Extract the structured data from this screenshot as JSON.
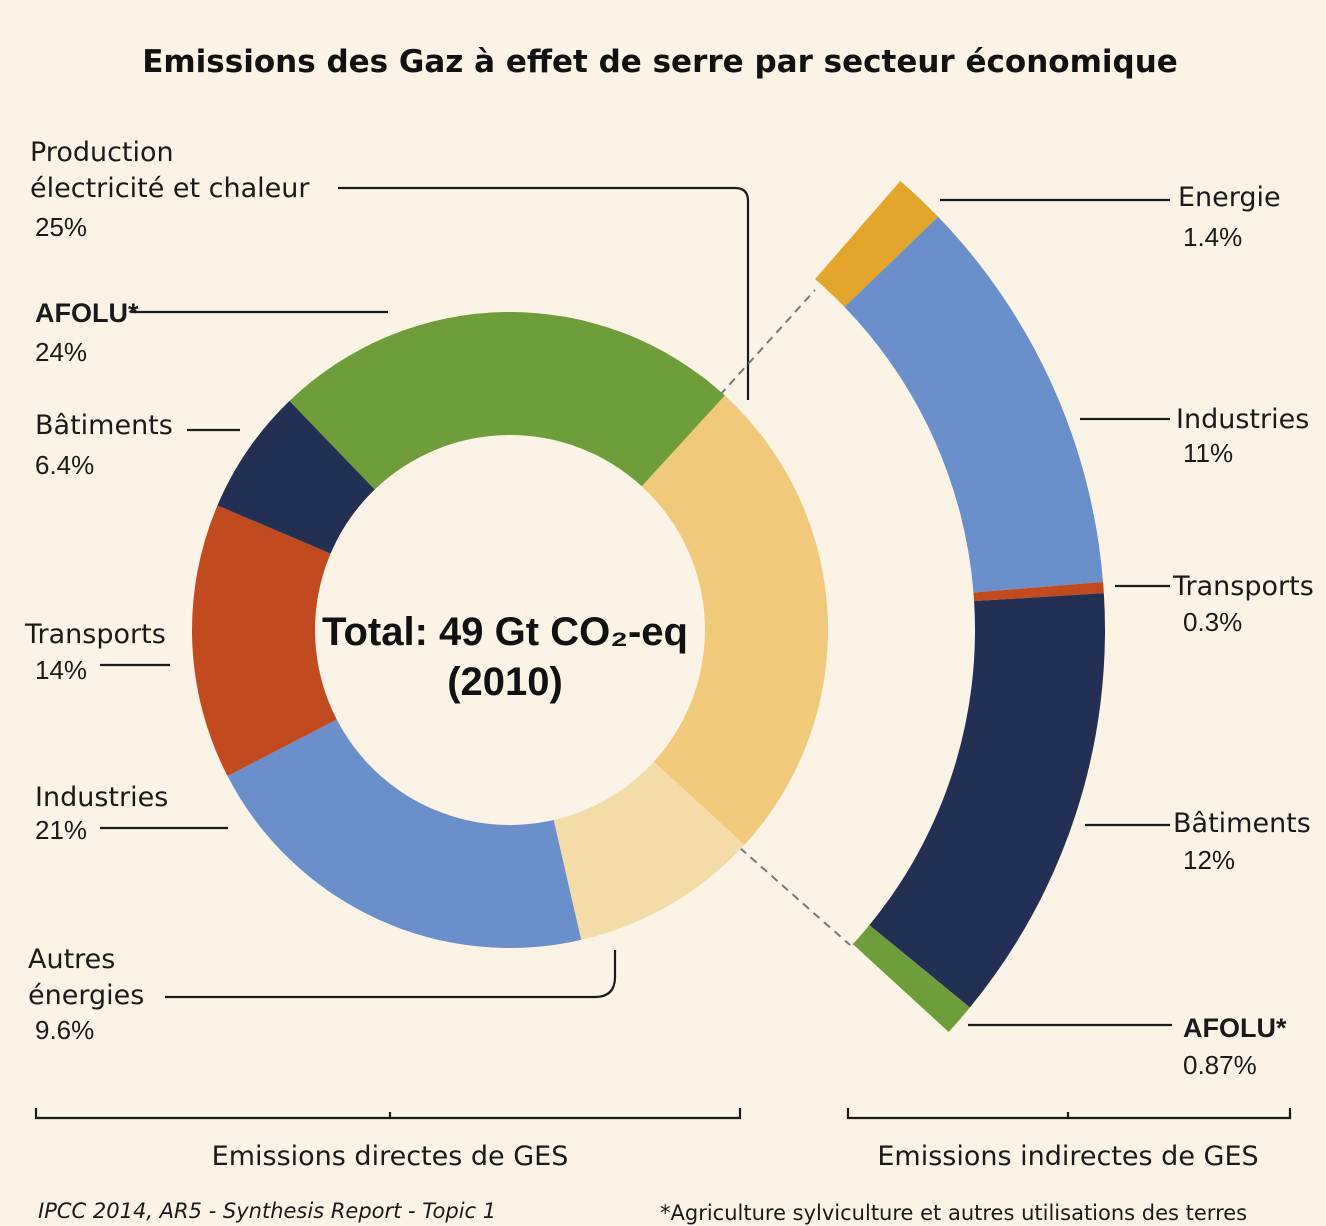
{
  "title": "Emissions des Gaz à effet de serre par secteur économique",
  "chart_data": [
    {
      "type": "donut",
      "center_label": [
        "Total: 49 Gt CO₂-eq",
        "(2010)"
      ],
      "categories": [
        "Production\nélectricité et chaleur",
        "Autres\nénergies",
        "Industries",
        "Transports",
        "Bâtiments",
        "AFOLU*"
      ],
      "values": [
        25,
        9.6,
        21,
        14,
        6.4,
        24
      ],
      "value_labels": [
        "25%",
        "9.6%",
        "21%",
        "14%",
        "6.4%",
        "24%"
      ],
      "colors": [
        "#f0c97a",
        "#f4dca8",
        "#6a8fca",
        "#c14b1e",
        "#243053",
        "#6d9e3a"
      ],
      "group_label": "Emissions directes de GES"
    },
    {
      "type": "arc",
      "categories": [
        "Energie",
        "Industries",
        "Transports",
        "Bâtiments",
        "AFOLU*"
      ],
      "values": [
        1.4,
        11,
        0.3,
        12,
        0.87
      ],
      "value_labels": [
        "1.4%",
        "11%",
        "0.3%",
        "12%",
        "0.87%"
      ],
      "colors": [
        "#e3a52c",
        "#6a8fca",
        "#c14b1e",
        "#243053",
        "#6d9e3a"
      ],
      "group_label": "Emissions indirectes de GES"
    }
  ],
  "source": "IPCC 2014, AR5 - Synthesis Report - Topic 1",
  "footnote": "*Agriculture sylviculture et autres utilisations des terres"
}
